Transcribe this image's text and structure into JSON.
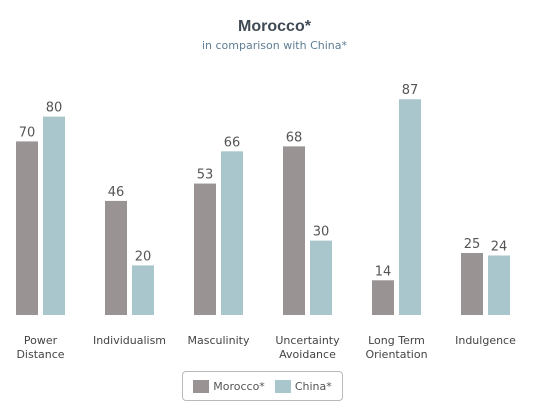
{
  "chart_data": {
    "type": "bar",
    "title": "Morocco*",
    "subtitle": "in comparison with China*",
    "categories": [
      [
        "Power",
        "Distance"
      ],
      [
        "Individualism"
      ],
      [
        "Masculinity"
      ],
      [
        "Uncertainty",
        "Avoidance"
      ],
      [
        "Long Term",
        "Orientation"
      ],
      [
        "Indulgence"
      ]
    ],
    "series": [
      {
        "name": "Morocco*",
        "color": "#999394",
        "values": [
          70,
          46,
          53,
          68,
          14,
          25
        ]
      },
      {
        "name": "China*",
        "color": "#a9c6cd",
        "values": [
          80,
          20,
          66,
          30,
          87,
          24
        ]
      }
    ],
    "ylim": [
      0,
      100
    ],
    "grid": false,
    "data_labels": true,
    "legend_position": "bottom-center"
  }
}
